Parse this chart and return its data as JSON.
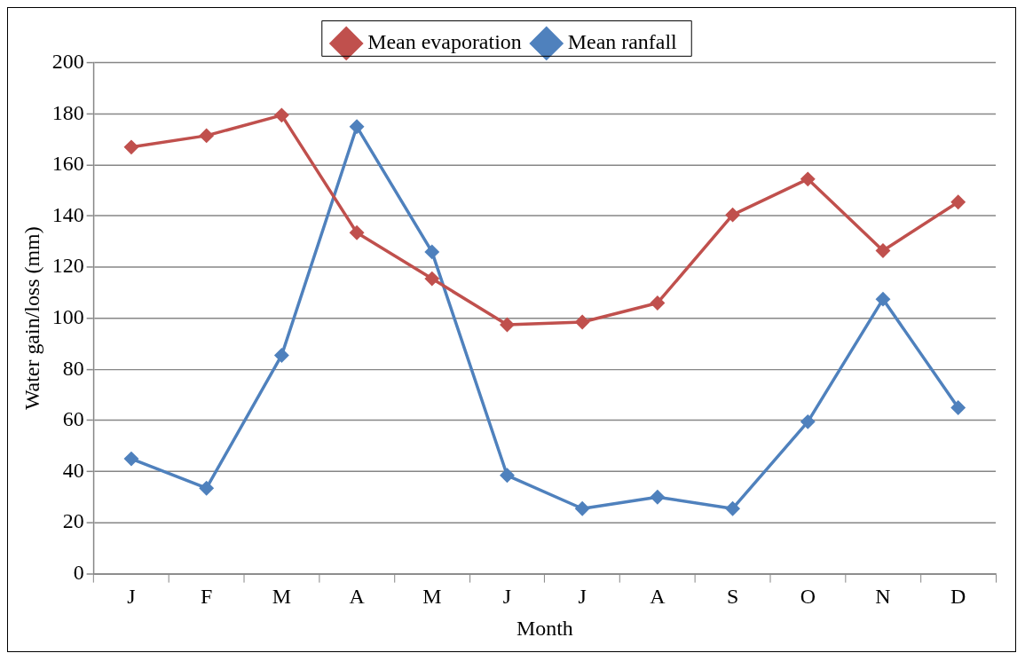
{
  "chart_data": {
    "type": "line",
    "xlabel": "Month",
    "ylabel": "Water gain/loss (mm)",
    "categories": [
      "J",
      "F",
      "M",
      "A",
      "M",
      "J",
      "J",
      "A",
      "S",
      "O",
      "N",
      "D"
    ],
    "series": [
      {
        "name": "Mean evaporation",
        "color": "#c0504d",
        "values": [
          167,
          171.5,
          179.5,
          133.5,
          115.5,
          97.5,
          98.5,
          106,
          140.5,
          154.5,
          126.5,
          145.5
        ]
      },
      {
        "name": "Mean ranfall",
        "color": "#4f81bd",
        "values": [
          45,
          33.5,
          85.5,
          175,
          126,
          38.5,
          25.5,
          30,
          25.5,
          59.5,
          107.5,
          65
        ]
      }
    ],
    "ylim": [
      0,
      200
    ],
    "yticks": [
      0,
      20,
      40,
      60,
      80,
      100,
      120,
      140,
      160,
      180,
      200
    ],
    "grid": "y",
    "legend": "top",
    "marker": "diamond",
    "line_style": "solid"
  }
}
